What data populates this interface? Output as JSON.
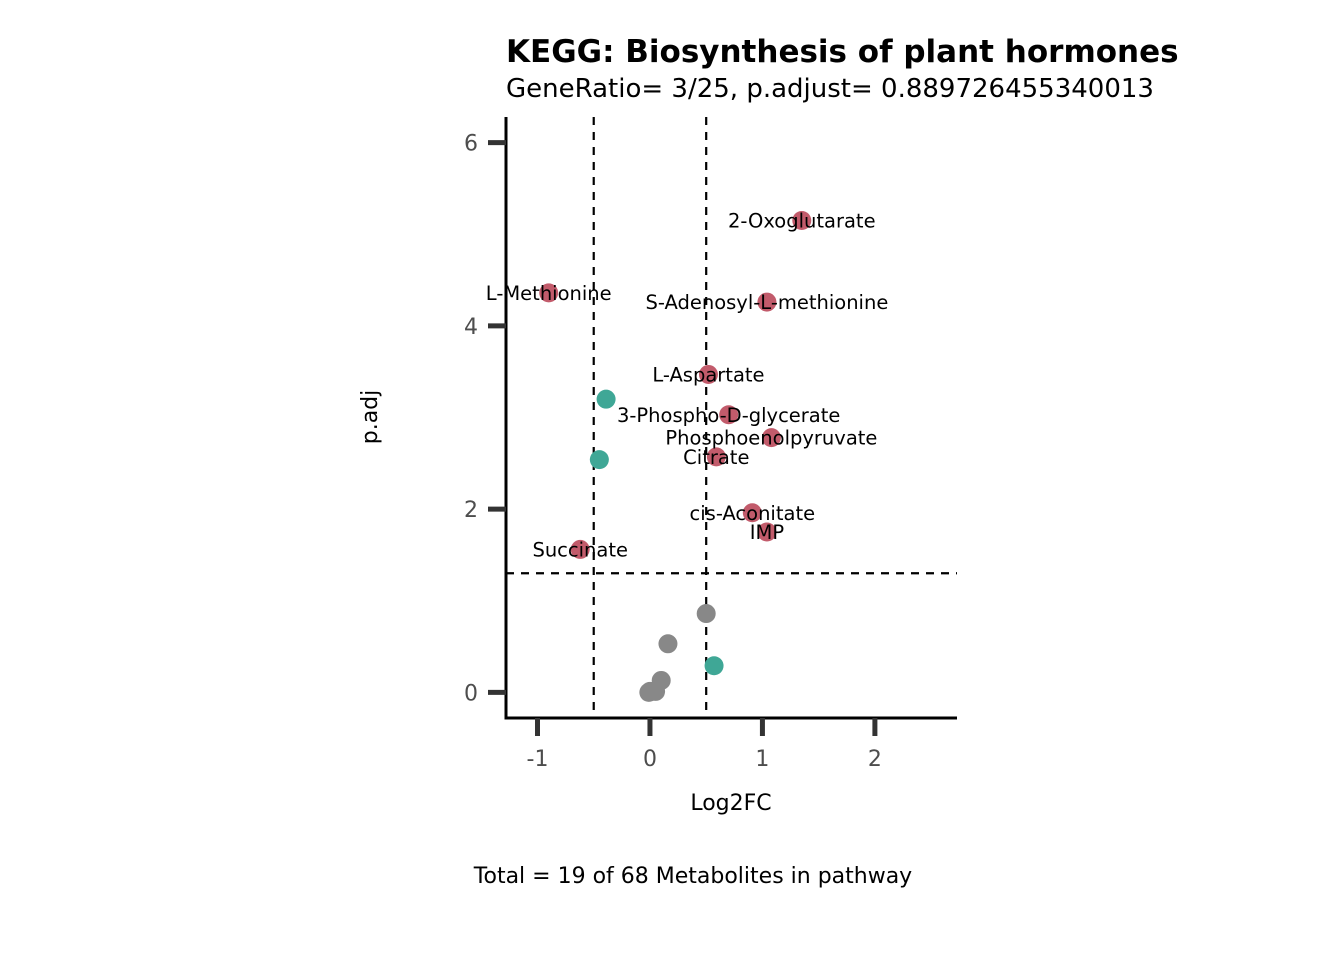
{
  "chart_data": {
    "type": "scatter",
    "title": "KEGG: Biosynthesis of plant hormones",
    "subtitle": "GeneRatio= 3/25, p.adjust= 0.889726455340013",
    "xlabel": "Log2FC",
    "ylabel": "p.adj",
    "caption": "Total = 19 of 68 Metabolites in pathway",
    "xlim": [
      -1.28,
      2.73
    ],
    "ylim": [
      -0.28,
      6.28
    ],
    "x_ticks": [
      -1,
      0,
      1,
      2
    ],
    "x_tick_labels": [
      "-1",
      "0",
      "1",
      "2"
    ],
    "y_ticks": [
      0,
      2,
      4,
      6
    ],
    "y_tick_labels": [
      "0",
      "2",
      "4",
      "6"
    ],
    "grid": false,
    "legend": "none",
    "thresholds": {
      "vlines": [
        -0.5,
        0.5
      ],
      "hline": 1.3
    },
    "colors": {
      "up": "#c25b6b",
      "down": "#3fa796",
      "ns": "#888888"
    },
    "points": [
      {
        "label": "2-Oxoglutarate",
        "x": 1.35,
        "y": 5.15,
        "group": "up"
      },
      {
        "label": "S-Adenosyl-L-methionine",
        "x": 1.04,
        "y": 4.26,
        "group": "up"
      },
      {
        "label": "L-Methionine",
        "x": -0.9,
        "y": 4.36,
        "group": "up"
      },
      {
        "label": "L-Aspartate",
        "x": 0.52,
        "y": 3.47,
        "group": "up"
      },
      {
        "label": "3-Phospho-D-glycerate",
        "x": 0.7,
        "y": 3.03,
        "group": "up"
      },
      {
        "label": "Phosphoenolpyruvate",
        "x": 1.08,
        "y": 2.78,
        "group": "up"
      },
      {
        "label": "Citrate",
        "x": 0.59,
        "y": 2.57,
        "group": "up"
      },
      {
        "label": "cis-Aconitate",
        "x": 0.91,
        "y": 1.96,
        "group": "up"
      },
      {
        "label": "IMP",
        "x": 1.04,
        "y": 1.75,
        "group": "up"
      },
      {
        "label": "Succinate",
        "x": -0.62,
        "y": 1.56,
        "group": "up"
      },
      {
        "label": "",
        "x": -0.39,
        "y": 3.2,
        "group": "down"
      },
      {
        "label": "",
        "x": -0.45,
        "y": 2.54,
        "group": "down"
      },
      {
        "label": "",
        "x": 0.57,
        "y": 0.29,
        "group": "down"
      },
      {
        "label": "",
        "x": 0.5,
        "y": 0.86,
        "group": "ns"
      },
      {
        "label": "",
        "x": 0.16,
        "y": 0.53,
        "group": "ns"
      },
      {
        "label": "",
        "x": 0.1,
        "y": 0.13,
        "group": "ns"
      },
      {
        "label": "",
        "x": 0.0,
        "y": 0.01,
        "group": "ns"
      },
      {
        "label": "",
        "x": 0.05,
        "y": 0.01,
        "group": "ns"
      },
      {
        "label": "",
        "x": -0.01,
        "y": 0.0,
        "group": "ns"
      }
    ]
  }
}
